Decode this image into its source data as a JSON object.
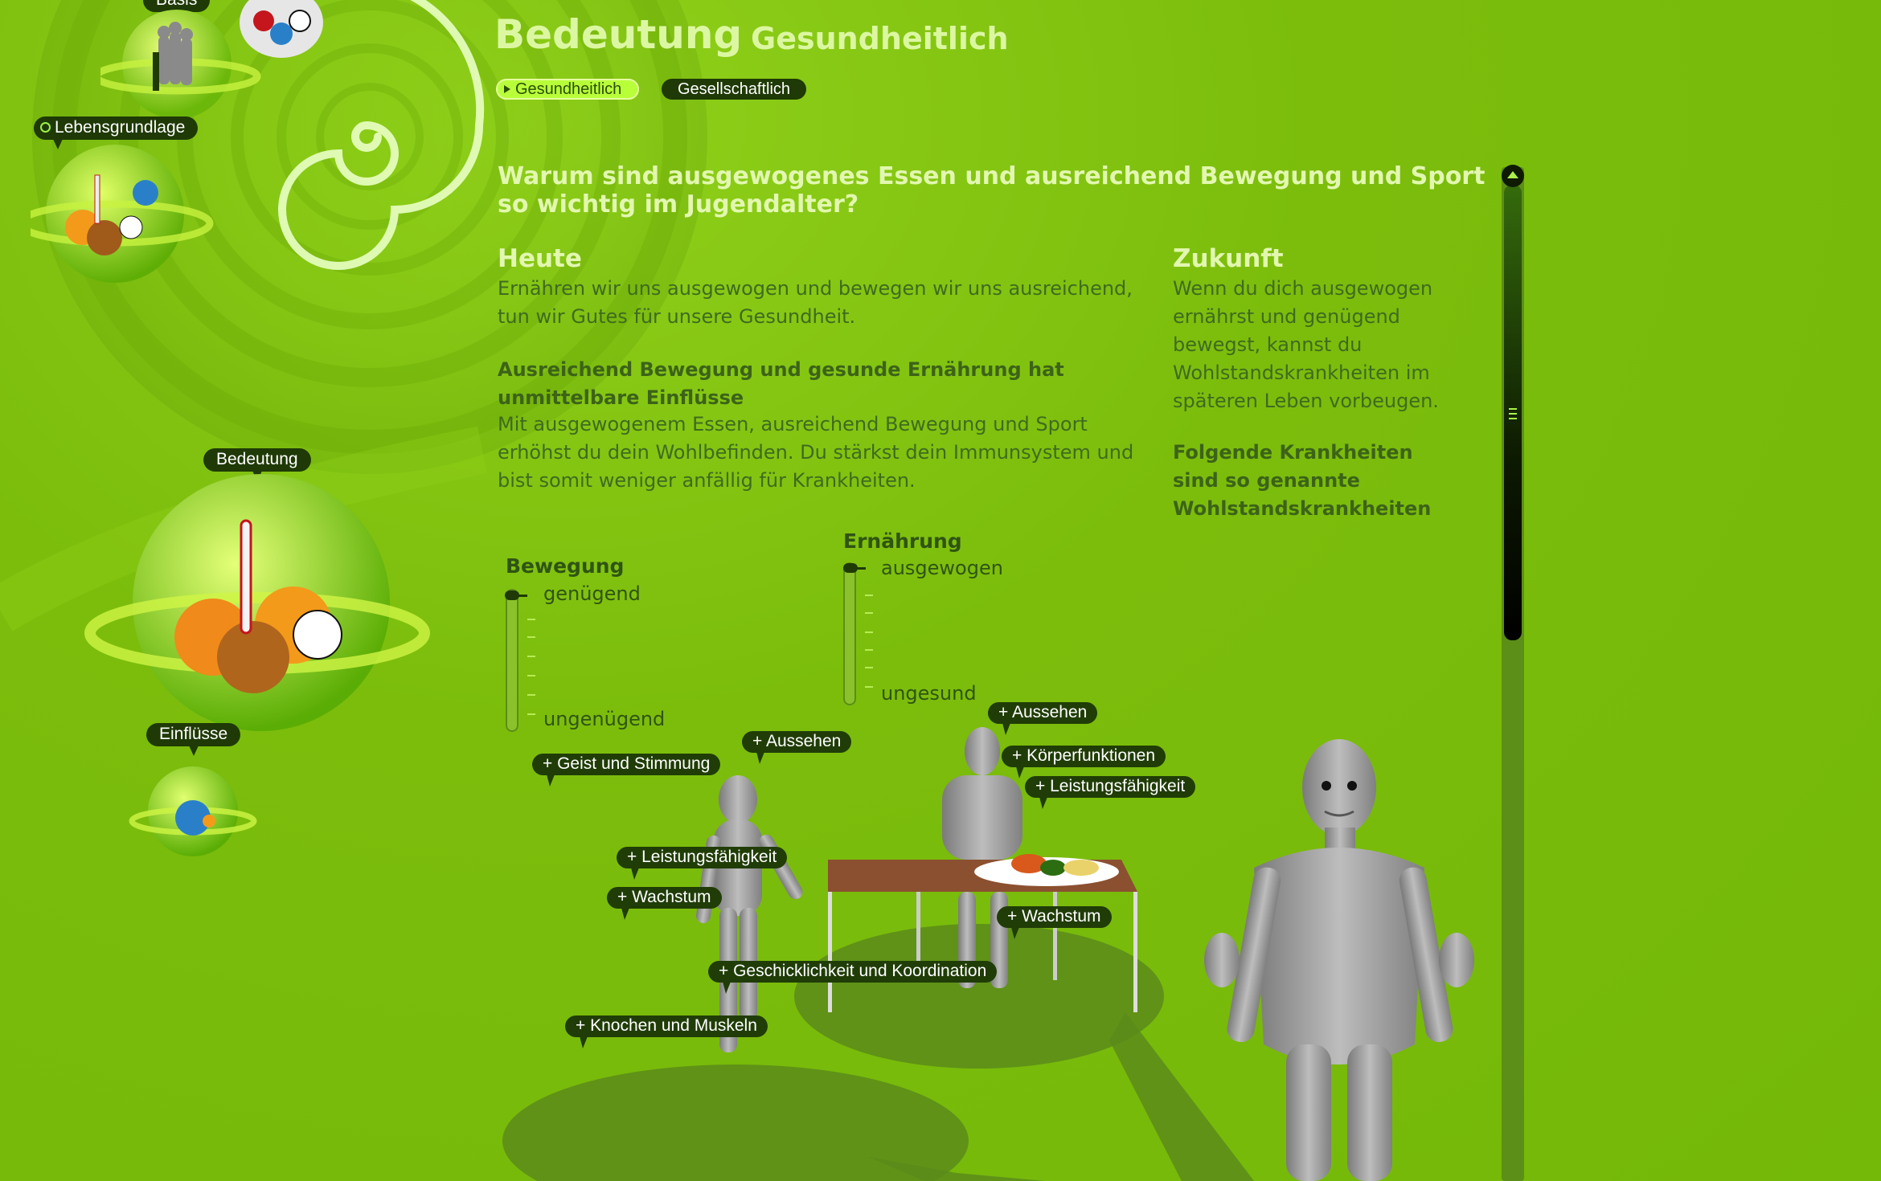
{
  "header": {
    "title": "Bedeutung",
    "subtitle": "Gesundheitlich"
  },
  "tabs": [
    {
      "label": "Gesundheitlich",
      "active": true
    },
    {
      "label": "Gesellschaftlich",
      "active": false
    }
  ],
  "nav": {
    "basis": "Basis",
    "lebensgrundlage": "Lebensgrundlage",
    "bedeutung": "Bedeutung",
    "einfluesse": "Einflüsse"
  },
  "content": {
    "question": "Warum sind ausgewogenes Essen und ausreichend Bewegung und Sport so wichtig im Jugendalter?",
    "heute": {
      "heading": "Heute",
      "text": "Ernähren wir uns ausgewogen und bewegen wir uns ausreichend, tun wir Gutes für unsere Gesundheit.",
      "bold": "Ausreichend Bewegung und gesunde Ernährung hat unmittelbare Einflüsse",
      "text2": "Mit ausgewogenem Essen, ausreichend Bewegung und Sport erhöhst du dein Wohlbefinden. Du stärkst dein Immunsystem und bist somit weniger anfällig für Krankheiten."
    },
    "zukunft": {
      "heading": "Zukunft",
      "text": "Wenn du dich ausgewogen ernährst und genügend bewegst, kannst du Wohlstandskrankheiten im späteren Leben vorbeugen.",
      "bold": "Folgende Krankheiten sind so genannte Wohlstandskrankheiten"
    }
  },
  "sliders": {
    "bewegung": {
      "title": "Bewegung",
      "top": "genügend",
      "bottom": "ungenügend",
      "level": 1.0
    },
    "ernaehrung": {
      "title": "Ernährung",
      "top": "ausgewogen",
      "bottom": "ungesund",
      "level": 1.0
    }
  },
  "callouts": {
    "geist": "+ Geist und Stimmung",
    "aussehen1": "+ Aussehen",
    "leistung1": "+ Leistungsfähigkeit",
    "wachstum1": "+ Wachstum",
    "geschick": "+ Geschicklichkeit und Koordination",
    "knochen": "+ Knochen und Muskeln",
    "aussehen2": "+ Aussehen",
    "koerper": "+ Körperfunktionen",
    "leistung2": "+ Leistungsfähigkeit",
    "wachstum2": "+ Wachstum"
  },
  "colors": {
    "background": "#7cbd0c",
    "heading": "#e2f7b0",
    "body_text": "#3f6b1f",
    "tag_bg": "#1f3a06",
    "active_tab": "#b8ff3a"
  }
}
